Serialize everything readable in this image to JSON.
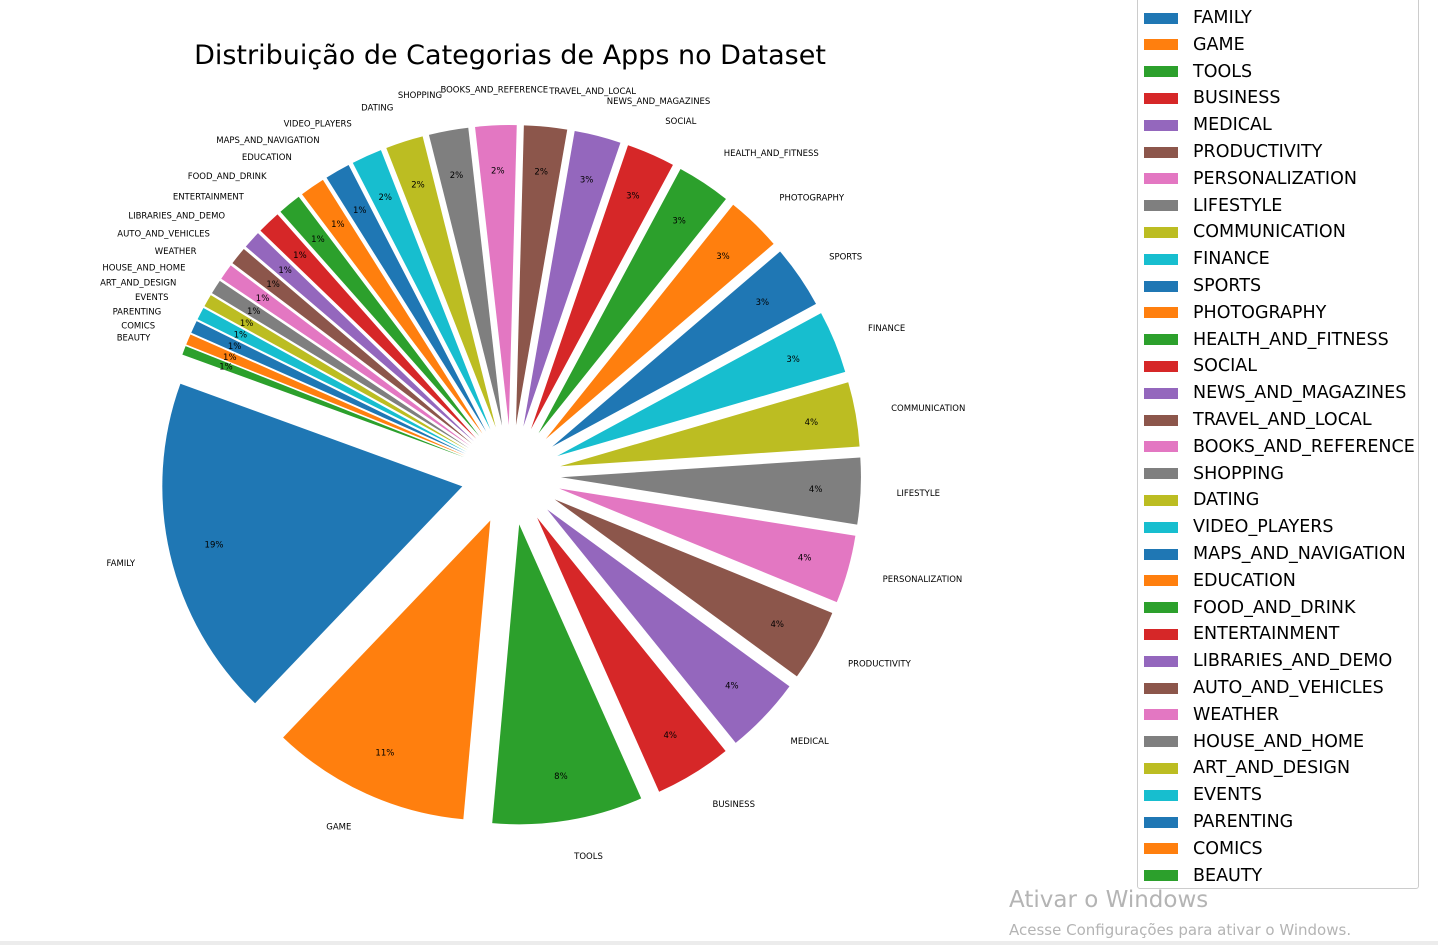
{
  "chart_data": {
    "type": "pie",
    "title": "Distribuição de Categorias de Apps no Dataset",
    "categories": [
      "FAMILY",
      "GAME",
      "TOOLS",
      "BUSINESS",
      "MEDICAL",
      "PRODUCTIVITY",
      "PERSONALIZATION",
      "LIFESTYLE",
      "COMMUNICATION",
      "FINANCE",
      "SPORTS",
      "PHOTOGRAPHY",
      "HEALTH_AND_FITNESS",
      "SOCIAL",
      "NEWS_AND_MAGAZINES",
      "TRAVEL_AND_LOCAL",
      "BOOKS_AND_REFERENCE",
      "SHOPPING",
      "DATING",
      "VIDEO_PLAYERS",
      "MAPS_AND_NAVIGATION",
      "EDUCATION",
      "FOOD_AND_DRINK",
      "ENTERTAINMENT",
      "LIBRARIES_AND_DEMO",
      "AUTO_AND_VEHICLES",
      "WEATHER",
      "HOUSE_AND_HOME",
      "ART_AND_DESIGN",
      "EVENTS",
      "PARENTING",
      "COMICS",
      "BEAUTY"
    ],
    "values": [
      19.1,
      11.1,
      8.4,
      4.3,
      4.3,
      4.0,
      3.8,
      3.7,
      3.6,
      3.5,
      3.5,
      3.1,
      3.0,
      2.7,
      2.6,
      2.4,
      2.3,
      2.2,
      2.1,
      1.7,
      1.4,
      1.4,
      1.3,
      1.3,
      1.0,
      1.0,
      0.9,
      0.8,
      0.7,
      0.7,
      0.7,
      0.6,
      0.5
    ],
    "pct_labels": [
      "19%",
      "11%",
      "8%",
      "4%",
      "4%",
      "4%",
      "4%",
      "4%",
      "4%",
      "3%",
      "3%",
      "3%",
      "3%",
      "3%",
      "3%",
      "2%",
      "2%",
      "2%",
      "2%",
      "2%",
      "1%",
      "1%",
      "1%",
      "1%",
      "1%",
      "1%",
      "1%",
      "1%",
      "1%",
      "1%",
      "1%",
      "1%",
      "1%"
    ],
    "colors": [
      "#1f77b4",
      "#ff7f0e",
      "#2ca02c",
      "#d62728",
      "#9467bd",
      "#8c564b",
      "#e377c2",
      "#7f7f7f",
      "#bcbd22",
      "#17becf"
    ],
    "start_angle_deg": 160,
    "direction": "counterclockwise",
    "exploded": true,
    "legend": {
      "position": "right",
      "entries": [
        "FAMILY",
        "GAME",
        "TOOLS",
        "BUSINESS",
        "MEDICAL",
        "PRODUCTIVITY",
        "PERSONALIZATION",
        "LIFESTYLE",
        "COMMUNICATION",
        "FINANCE",
        "SPORTS",
        "PHOTOGRAPHY",
        "HEALTH_AND_FITNESS",
        "SOCIAL",
        "NEWS_AND_MAGAZINES",
        "TRAVEL_AND_LOCAL",
        "BOOKS_AND_REFERENCE",
        "SHOPPING",
        "DATING",
        "VIDEO_PLAYERS",
        "MAPS_AND_NAVIGATION",
        "EDUCATION",
        "FOOD_AND_DRINK",
        "ENTERTAINMENT",
        "LIBRARIES_AND_DEMO",
        "AUTO_AND_VEHICLES",
        "WEATHER",
        "HOUSE_AND_HOME",
        "ART_AND_DESIGN",
        "EVENTS",
        "PARENTING",
        "COMICS",
        "BEAUTY"
      ]
    }
  },
  "watermark": {
    "title": "Ativar o Windows",
    "subtitle": "Acesse Configurações para ativar o Windows."
  }
}
